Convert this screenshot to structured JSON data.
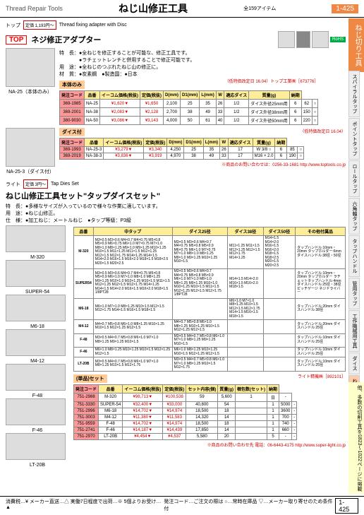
{
  "header": {
    "en": "Thread Repair Tools",
    "jp": "ねじ山修正工具",
    "items": "全159アイテム",
    "pageNum": "1-425"
  },
  "sideTabMain": "ねじ切り工具",
  "sideTabs": [
    "スパイラルタップ",
    "ポイントタップ",
    "ロールタップ",
    "六角軸タップ",
    "タップハンドル",
    "管用タップ",
    "工作機械用工具",
    "ダイス",
    "ねじ山修正工具",
    "インサートねじ"
  ],
  "sidePromo": "他、多数の切削工具を1823〜1022ページに掲載",
  "section1": {
    "brand": "TOP",
    "brandLabel": "トップ",
    "priceBadge": "定価 1,193円〜",
    "titleEn": "Thread fixing adapter with Disc",
    "titleJp": "ネジ修正アダプター",
    "badge": "RoHS",
    "desc1": "特　長：●全ねじを修正することが可能な、修正工具です。",
    "desc2": "　　　　●ラチェットレンチと併用することで修正可能です。",
    "desc3": "用　途：●全ねじのつぶれたねじ山の修正に。",
    "desc4": "材　質：●炭素鋼　●製造国：●日本",
    "img1Label": "NA-25（本体のみ）",
    "img2Label": "NA-25-3（ダイス付）",
    "subHead1": "本体のみ",
    "subHead2": "ダイス付",
    "note1": "（低特価改定日 16.04）トップ工業㈱［673776］",
    "note2": "（低特価改定日 16.04）",
    "cols1": [
      "発注コード",
      "品番",
      "イーコム価格(税抜)",
      "定価(税抜)",
      "D(mm)",
      "D1(mm)",
      "L(mm)",
      "W",
      "適応ダイス",
      "質量(g)",
      "納期"
    ],
    "rows1": [
      [
        "369-1985",
        "NA-25",
        "¥1,620▼",
        "¥1,650",
        "2,100",
        "25",
        "35",
        "26",
        "1/2",
        "ダイス外径25mm用",
        "6",
        "62",
        "○"
      ],
      [
        "369-2001",
        "NA-38",
        "¥2,083▼",
        "¥2,128",
        "2,700",
        "38",
        "49",
        "33",
        "1/2",
        "ダイス外径38mm用",
        "6",
        "150",
        "○"
      ],
      [
        "380-9030",
        "NA-50",
        "¥3,086▼",
        "¥3,143",
        "4,000",
        "50",
        "61",
        "40",
        "1/2",
        "ダイス外径50mm用",
        "6",
        "220",
        "○"
      ]
    ],
    "cols2": [
      "発注コード",
      "品番",
      "イーコム価格(税抜)",
      "定価(税抜)",
      "D(mm)",
      "D1(mm)",
      "L(mm)",
      "W",
      "適応ダイス",
      "質量(g)",
      "納期"
    ],
    "rows2": [
      [
        "369-1993",
        "NA-25-3",
        "¥3,279▼",
        "¥3,340",
        "4,250",
        "25",
        "35",
        "26",
        "17",
        "W 3/8 ○",
        "6",
        "85",
        "○"
      ],
      [
        "369-2019",
        "NA-38-3",
        "¥3,836▼",
        "¥3,919",
        "4,970",
        "38",
        "49",
        "33",
        "17",
        "M16 × 2.0",
        "6",
        "190",
        "○"
      ]
    ],
    "bottomNote": "※商品のお問い合わせは：0256-33-1681 http://www.toptools.co.jp"
  },
  "section2": {
    "brand": "ライト",
    "priceBadge": "定価 3円〜",
    "titleEn": "Tap Dies Set",
    "titleJp": "ねじ山修正工具セット\"タップダイスセット\"",
    "desc1": "特　長：●多様なサイズが入っているので様々な作業に適しています。",
    "desc2": "用　途：●ねじ山修正。",
    "desc3": "仕　様：●加工ねじ：メートルねじ　●タップ等級：P3級",
    "imgLabels": [
      "M-320",
      "SUPER-54",
      "M6-18",
      "M4-12",
      "F-48",
      "F-46",
      "LT-20B"
    ],
    "cols": [
      "品番",
      "中タップ",
      "ダイス25径",
      "ダイス38径",
      "ダイス50径",
      "その他付属品"
    ],
    "rows": [
      [
        "M-320",
        "M3×0.5 M3×0.6 M4×0.7 M4×0.75 M5×0.8 M5×0.9 M6×0.75 M6×1.0 M7×0.75 M7×1.0 M8×1.0 M8×1.25 M9×1.0 M9×1.25 M10×1.25 M10×1.5 M11×1.25 M11×1.5 M12×1.25 M12×1.5 M12×1.75 M14×1.25 M14×1.5 M14×2.0 M16×1.5 M16×2.0 M18×1.5 M18×2.5 M20×1.5 M20×2.5",
        "M3×0.5 M3×0.6 M4×0.7 M4×0.75 M5×0.8 M5×0.9 M6×0.75 M6×1.0 M7×0.75 M7×1.0 M8×1.0 M8×1.25 M9×1.0 M9×1.25 M10×1.25 M10×1.5",
        "M11×1.25 M11×1.5 M12×1.25 M12×1.5 M12×1.75 M14×1.25",
        "M14×1.5 M14×2.0 M16×1.5 M16×2.0 M18×1.5 M18×2.5 M20×1.5 M20×2.5",
        "タップハンドル:10mm・20mm タップホルダー:6mm ダイスハンドル:38径・50径"
      ],
      [
        "SUPER54",
        "M3×0.5 M3×0.6 M4×0.7 M4×0.75 M5×0.8 M5×0.9 M6×1.0 M7×1.0 M8×1.0 M8×1.25 M9×1.25 M10×1.0 M10×1.25 M10×1.5 M11×1.5 M12×1.25 M12×1.5 M12×1.75 M14×1.25 M14×1.5 M14×2.0 M16×1.5 M16×2.0 M18×1.5 1/8PT28",
        "M3×0.5 M3×0.6 M4×0.7 M4×0.75 M5×0.8 M5×0.9 M6×1.0 M7×1.0 M8×1.0 M8×1.25 M9×1.25 M10×1.0 M10×1.25 M10×1.5 M11×1.5 M12×1.25 M12×1.5 M12×1.75 1/8PT28",
        "M14×1.5 M14×2.0 M16×1.5 M16×2.0 M18×1.5",
        "",
        "タップハンドル:10mm・20mm タップホルダー ラチェットタップハンドル:4mm ダイスハンドル:25径・38径 ピッチゲージ ネジドライバー"
      ],
      [
        "M6-18",
        "M6×1.0 M7×1.0 M8×1.25 M10×1.5 M12×1.5 M12×1.75 M14×1.5 M16×1.5 M18×1.5",
        "",
        "M6×1.0 M7×1.0 M8×1.25 M10×1.5 M12×1.5 M12×1.75 M14×1.5 M16×1.5 M18×1.5",
        "",
        "タップハンドル:20mm ダイスハンドル:38径"
      ],
      [
        "M4-12",
        "M4×0.7 M5×0.8 M6×1.0 M8×1.25 M10×1.25 M10×1.5 M12×1.25 M12×1.5",
        "M4×0.7 M5×0.8 M6×1.0 M8×1.25 M10×1.25 M10×1.5 M12×1.25 M12×1.5",
        "",
        "",
        "タップハンドル:20mm ダイスハンドル:25径"
      ],
      [
        "F-48",
        "M3×0.5 M4×0.7 M5×0.8 M6×1.0 M7×1.0 M8×1.25 M9×1.25 M10×1.5",
        "M3×0.5 M4×0.7 M5×0.8 M6×1.0 M7×1.0 M8×1.25 M9×1.25 M10×1.5",
        "",
        "",
        "タップハンドル:10mm ダイスハンドル:25径"
      ],
      [
        "F-46",
        "M6×1.0 M8×1.25 M10×1.25 M10×1.5 M12×1.25 M12×1.5",
        "M6×1.0 M8×1.25 M10×1.25 M10×1.5 M12×1.25 M12×1.5",
        "",
        "",
        "タップハンドル:10mm ダイスハンドル:25径"
      ],
      [
        "LT-20B",
        "M3×0.5 M4×0.7 M5×0.8 M6×1.0 M7×1.0 M8×1.25 M10×1.5 M12×1.75",
        "M3×0.5 M4×0.7 M5×0.8 M6×1.0 M7×1.0 M8×1.25 M10×1.5 M12×1.75",
        "",
        "",
        "タップハンドル:10mm ダイスハンドル:25径"
      ]
    ],
    "subHead3": "(単品)セット",
    "note3": "ライト精機㈱［892101］",
    "cols3": [
      "発注コード",
      "品番",
      "イーコム価格(税抜)",
      "定価(税抜)",
      "セット内容(個)",
      "質量(g)",
      "梱包数(セット)",
      "納期"
    ],
    "rows3": [
      [
        "751-2988",
        "M-320",
        "¥98,713▼",
        "¥100,538",
        "59",
        "5,600",
        "1",
        "日",
        "-"
      ],
      [
        "751-3330",
        "SUPER-54",
        "¥32,400▼",
        "¥33,000",
        "40,800",
        "54",
        "",
        "1",
        "5000",
        "-"
      ],
      [
        "751-2996",
        "M6-18",
        "¥14,702▼",
        "¥14,974",
        "18,500",
        "18",
        "",
        "1",
        "3600",
        "-"
      ],
      [
        "751-3003",
        "M4-12",
        "¥11,380▼",
        "¥11,583",
        "14,320",
        "14",
        "",
        "1",
        "700",
        "-"
      ],
      [
        "751-9559",
        "F-48",
        "¥14,702▼",
        "¥14,974",
        "18,500",
        "18",
        "",
        "1",
        "740",
        "-"
      ],
      [
        "751-2741",
        "F-46",
        "¥14,187▼",
        "¥14,439",
        "17,850",
        "14",
        "",
        "1",
        "660",
        "-"
      ],
      [
        "751-2970",
        "LT-20B",
        "¥4,454▼",
        "¥4,537",
        "5,580",
        "20",
        "",
        "5",
        "-",
        "-"
      ]
    ],
    "bottomNote": "※商品のお問い合わせ先 電話：06-6443-4175 http://www.super-light.co.jp"
  },
  "footer": {
    "left": "消費税…¥ メーカー直送…△ 実働7日程度で出荷…※ 5個よりお受け…▲",
    "mid": "発注コード…ご注文の際は ○…常時在庫品 ▽…メーカー取り寄せのため条件付",
    "pageNum": "1-425"
  }
}
